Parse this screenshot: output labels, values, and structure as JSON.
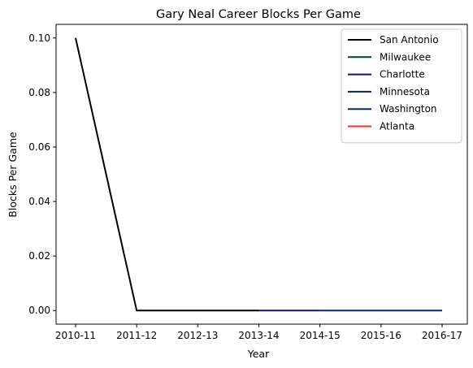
{
  "chart_data": {
    "type": "line",
    "title": "Gary Neal Career Blocks Per Game",
    "xlabel": "Year",
    "ylabel": "Blocks Per Game",
    "categories": [
      "2010-11",
      "2011-12",
      "2012-13",
      "2013-14",
      "2014-15",
      "2015-16",
      "2016-17"
    ],
    "yticks": [
      "0.00",
      "0.02",
      "0.04",
      "0.06",
      "0.08",
      "0.10"
    ],
    "ylim": [
      -0.005,
      0.105
    ],
    "legend_position": "top-right",
    "series": [
      {
        "name": "San Antonio",
        "color": "#000000",
        "x": [
          "2010-11",
          "2011-12",
          "2012-13",
          "2013-14"
        ],
        "values": [
          0.1,
          0.0,
          0.0,
          0.0
        ]
      },
      {
        "name": "Milwaukee",
        "color": "#00471b",
        "x": [
          "2013-14"
        ],
        "values": [
          0.0
        ]
      },
      {
        "name": "Charlotte",
        "color": "#1d1160",
        "x": [
          "2013-14",
          "2014-15"
        ],
        "values": [
          0.0,
          0.0
        ]
      },
      {
        "name": "Minnesota",
        "color": "#0c2340",
        "x": [
          "2014-15"
        ],
        "values": [
          0.0
        ]
      },
      {
        "name": "Washington",
        "color": "#002b5c",
        "x": [
          "2014-15",
          "2015-16",
          "2016-17"
        ],
        "values": [
          0.0,
          0.0,
          0.0
        ]
      },
      {
        "name": "Atlanta",
        "color": "#e03a3e",
        "x": [
          "2016-17"
        ],
        "values": [
          0.0
        ]
      }
    ]
  }
}
